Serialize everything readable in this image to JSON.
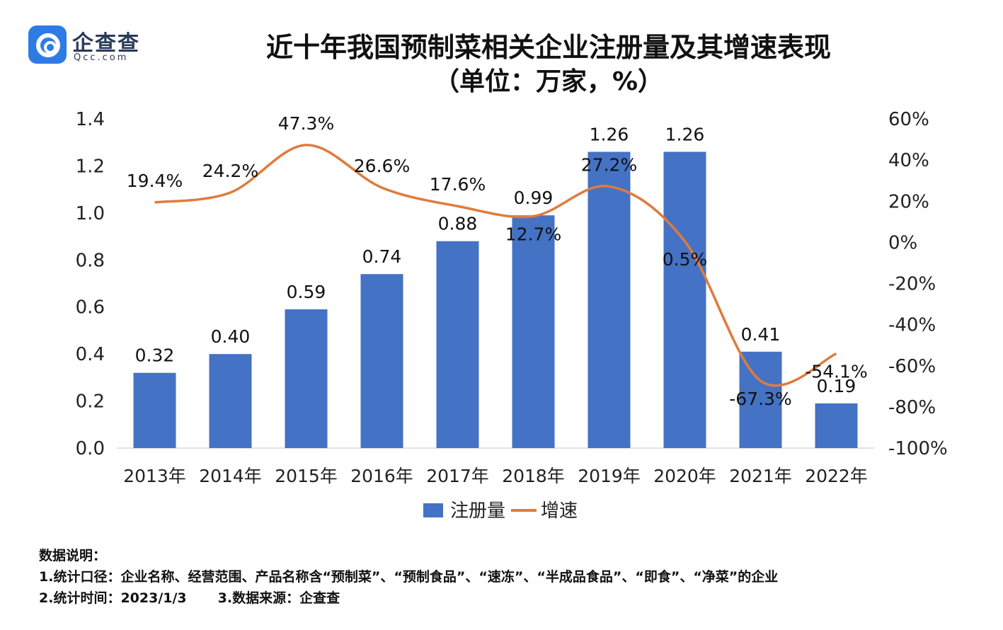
{
  "logo": {
    "name": "企查查",
    "sub": "Qcc.com"
  },
  "title": {
    "line1": "近十年我国预制菜相关企业注册量及其增速表现",
    "line2": "（单位：万家，%）"
  },
  "chart_data": {
    "type": "bar",
    "title": "近十年我国预制菜相关企业注册量及其增速表现",
    "subtitle": "（单位：万家，%）",
    "categories": [
      "2013年",
      "2014年",
      "2015年",
      "2016年",
      "2017年",
      "2018年",
      "2019年",
      "2020年",
      "2021年",
      "2022年"
    ],
    "series": [
      {
        "name": "注册量",
        "type": "bar",
        "axis": "left",
        "color": "#4472c4",
        "values": [
          0.32,
          0.4,
          0.59,
          0.74,
          0.88,
          0.99,
          1.26,
          1.26,
          0.41,
          0.19
        ],
        "labels": [
          "0.32",
          "0.40",
          "0.59",
          "0.74",
          "0.88",
          "0.99",
          "1.26",
          "1.26",
          "0.41",
          "0.19"
        ]
      },
      {
        "name": "增速",
        "type": "line",
        "axis": "right",
        "color": "#e07b3c",
        "values": [
          19.4,
          24.2,
          47.3,
          26.6,
          17.6,
          12.7,
          27.2,
          0.5,
          -67.3,
          -54.1
        ],
        "labels": [
          "19.4%",
          "24.2%",
          "47.3%",
          "26.6%",
          "17.6%",
          "12.7%",
          "27.2%",
          "0.5%",
          "-67.3%",
          "-54.1%"
        ]
      }
    ],
    "y_left": {
      "min": 0,
      "max": 1.4,
      "ticks": [
        "0.0",
        "0.2",
        "0.4",
        "0.6",
        "0.8",
        "1.0",
        "1.2",
        "1.4"
      ]
    },
    "y_right": {
      "min": -100,
      "max": 60,
      "ticks": [
        "-100%",
        "-80%",
        "-60%",
        "-40%",
        "-20%",
        "0%",
        "20%",
        "40%",
        "60%"
      ]
    },
    "legend": {
      "position": "bottom",
      "items": [
        "注册量",
        "增速"
      ]
    },
    "grid": false
  },
  "notes": {
    "heading": "数据说明：",
    "line1": "1.统计口径：企业名称、经营范围、产品名称含“预制菜”、“预制食品”、“速冻”、“半成品食品”、“即食”、“净菜”的企业",
    "time": "2.统计时间：2023/1/3",
    "source": "3.数据来源：企查查"
  }
}
